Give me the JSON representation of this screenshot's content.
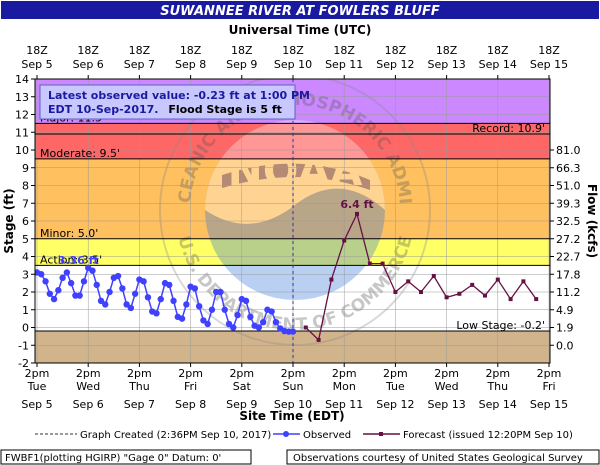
{
  "chart_data": {
    "type": "line",
    "title": "SUWANNEE RIVER AT FOWLERS BLUFF",
    "top_axis": {
      "label": "Universal Time (UTC)",
      "ticks": [
        {
          "top": "18Z",
          "bottom": "Sep 5"
        },
        {
          "top": "18Z",
          "bottom": "Sep 6"
        },
        {
          "top": "18Z",
          "bottom": "Sep 7"
        },
        {
          "top": "18Z",
          "bottom": "Sep 8"
        },
        {
          "top": "18Z",
          "bottom": "Sep 9"
        },
        {
          "top": "18Z",
          "bottom": "Sep 10"
        },
        {
          "top": "18Z",
          "bottom": "Sep 11"
        },
        {
          "top": "18Z",
          "bottom": "Sep 12"
        },
        {
          "top": "18Z",
          "bottom": "Sep 13"
        },
        {
          "top": "18Z",
          "bottom": "Sep 14"
        },
        {
          "top": "18Z",
          "bottom": "Sep 15"
        }
      ]
    },
    "bottom_axis": {
      "label": "Site Time (EDT)",
      "ticks": [
        {
          "time": "2pm",
          "day": "Tue",
          "date": "Sep 5"
        },
        {
          "time": "2pm",
          "day": "Wed",
          "date": "Sep 6"
        },
        {
          "time": "2pm",
          "day": "Thu",
          "date": "Sep 7"
        },
        {
          "time": "2pm",
          "day": "Fri",
          "date": "Sep 8"
        },
        {
          "time": "2pm",
          "day": "Sat",
          "date": "Sep 9"
        },
        {
          "time": "2pm",
          "day": "Sun",
          "date": "Sep 10"
        },
        {
          "time": "2pm",
          "day": "Mon",
          "date": "Sep 11"
        },
        {
          "time": "2pm",
          "day": "Tue",
          "date": "Sep 12"
        },
        {
          "time": "2pm",
          "day": "Wed",
          "date": "Sep 13"
        },
        {
          "time": "2pm",
          "day": "Thu",
          "date": "Sep 14"
        },
        {
          "time": "2pm",
          "day": "Fri",
          "date": "Sep 15"
        }
      ]
    },
    "ylabel": "Stage (ft)",
    "ylim": [
      -2,
      14
    ],
    "y_ticks": [
      "-2",
      "-1",
      "0",
      "1",
      "2",
      "3",
      "4",
      "5",
      "6",
      "7",
      "8",
      "9",
      "10",
      "11",
      "12",
      "13",
      "14"
    ],
    "y2label": "Flow (kcfs)",
    "y2_ticks": [
      {
        "stage": -1,
        "label": "0.0"
      },
      {
        "stage": 0,
        "label": "1.9"
      },
      {
        "stage": 1,
        "label": "4.9"
      },
      {
        "stage": 2,
        "label": "11.2"
      },
      {
        "stage": 3,
        "label": "17.8"
      },
      {
        "stage": 4,
        "label": "22.7"
      },
      {
        "stage": 5,
        "label": "27.2"
      },
      {
        "stage": 6,
        "label": "32.5"
      },
      {
        "stage": 7,
        "label": "39.3"
      },
      {
        "stage": 8,
        "label": "51.0"
      },
      {
        "stage": 9,
        "label": "66.3"
      },
      {
        "stage": 10,
        "label": "81.0"
      }
    ],
    "flood_bands": [
      {
        "name": "low",
        "from": -2,
        "to": -0.2,
        "color": "#d2b48c"
      },
      {
        "name": "normal",
        "from": -0.2,
        "to": 3.5,
        "color": "#ffffff"
      },
      {
        "name": "action",
        "from": 3.5,
        "to": 5.0,
        "color": "#ffff66"
      },
      {
        "name": "minor",
        "from": 5.0,
        "to": 9.5,
        "color": "#ffc060"
      },
      {
        "name": "moderate",
        "from": 9.5,
        "to": 11.5,
        "color": "#ff6666"
      },
      {
        "name": "major",
        "from": 11.5,
        "to": 14,
        "color": "#cc88ff"
      }
    ],
    "thresholds": {
      "action": {
        "value": 3.5,
        "label": "Action: 3.5'"
      },
      "minor": {
        "value": 5.0,
        "label": "Minor: 5.0'"
      },
      "moderate": {
        "value": 9.5,
        "label": "Moderate: 9.5'"
      },
      "major": {
        "value": 11.5,
        "label": "Major: 11.5'"
      },
      "record": {
        "value": 10.9,
        "label": "Record: 10.9'"
      },
      "low": {
        "value": -0.2,
        "label": "Low Stage: -0.2'"
      }
    },
    "info_box": {
      "line1": "Latest observed value: -0.23  ft at 1:00 PM",
      "line2a": "EDT 10-Sep-2017.",
      "line2b": "Flood Stage is 5 ft"
    },
    "peak_observed_label": "3.36 ft",
    "peak_forecast_label": "6.4 ft",
    "now_day": 5.0,
    "observed": {
      "name": "Observed",
      "color": "#4040ff",
      "x": [
        0,
        0.083,
        0.167,
        0.25,
        0.333,
        0.417,
        0.5,
        0.583,
        0.667,
        0.75,
        0.833,
        0.917,
        1,
        1.083,
        1.167,
        1.25,
        1.333,
        1.417,
        1.5,
        1.583,
        1.667,
        1.75,
        1.833,
        1.917,
        2,
        2.083,
        2.167,
        2.25,
        2.333,
        2.417,
        2.5,
        2.583,
        2.667,
        2.75,
        2.833,
        2.917,
        3,
        3.083,
        3.167,
        3.25,
        3.333,
        3.417,
        3.5,
        3.583,
        3.667,
        3.75,
        3.833,
        3.917,
        4,
        4.083,
        4.167,
        4.25,
        4.333,
        4.417,
        4.5,
        4.583,
        4.667,
        4.75,
        4.833,
        4.917,
        5
      ],
      "y": [
        3.1,
        3.0,
        2.6,
        1.9,
        1.6,
        2.1,
        2.8,
        3.1,
        2.5,
        1.8,
        1.8,
        2.6,
        3.36,
        3.2,
        2.4,
        1.5,
        1.3,
        2.0,
        2.8,
        2.9,
        2.2,
        1.3,
        1.1,
        1.9,
        2.7,
        2.6,
        1.7,
        0.9,
        0.8,
        1.6,
        2.5,
        2.4,
        1.5,
        0.6,
        0.5,
        1.3,
        2.3,
        2.2,
        1.2,
        0.4,
        0.2,
        1.0,
        2.0,
        2.0,
        1.0,
        0.2,
        0.0,
        0.7,
        1.6,
        1.5,
        0.6,
        0.1,
        0.0,
        0.3,
        1.0,
        0.9,
        0.3,
        -0.05,
        -0.2,
        -0.23,
        -0.23
      ]
    },
    "forecast": {
      "name": "Forecast (issued 12:20PM Sep 10)",
      "color": "#661144",
      "x": [
        5.25,
        5.5,
        5.75,
        6,
        6.25,
        6.5,
        6.75,
        7,
        7.25,
        7.5,
        7.75,
        8,
        8.25,
        8.5,
        8.75,
        9,
        9.25,
        9.5,
        9.75
      ],
      "y": [
        0.0,
        -0.7,
        2.7,
        4.9,
        6.4,
        3.6,
        3.6,
        2.0,
        2.6,
        2.0,
        2.9,
        1.7,
        1.9,
        2.4,
        1.8,
        2.7,
        1.6,
        2.6,
        1.6
      ]
    }
  },
  "legend": {
    "created": "Graph Created (2:36PM Sep 10, 2017)",
    "observed": "Observed",
    "forecast": "Forecast (issued 12:20PM Sep 10)"
  },
  "footer": {
    "left": "FWBF1(plotting HGIRP) \"Gage 0\" Datum: 0'",
    "right": "Observations courtesy of United States Geological Survey"
  },
  "watermark": {
    "center": "NOAA",
    "ring_top": "NATIONAL OCEANIC AND ATMOSPHERIC ADMINISTRATION",
    "ring_bottom": "U.S. DEPARTMENT OF COMMERCE"
  }
}
